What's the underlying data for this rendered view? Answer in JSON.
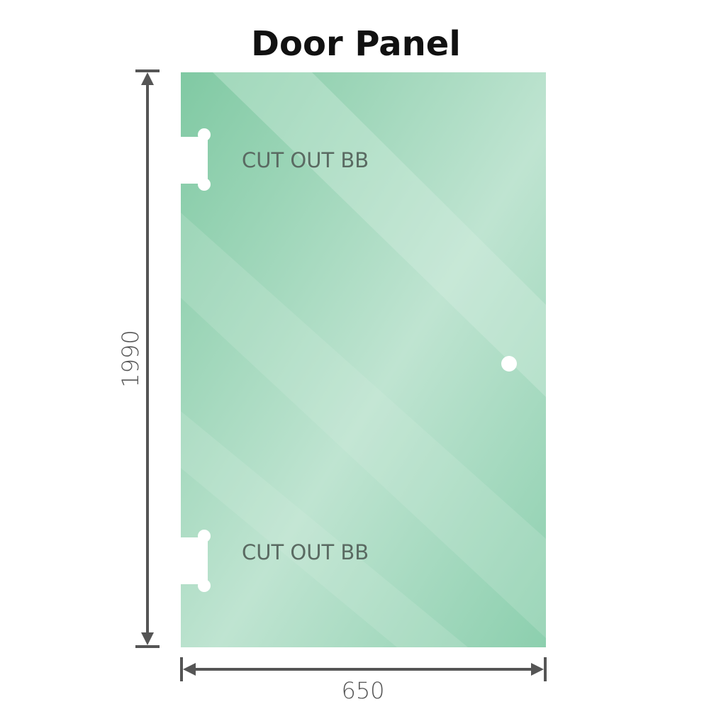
{
  "title": "Door Panel",
  "cutout_labels": [
    "CUT OUT BB",
    "CUT OUT BB"
  ],
  "dimensions": {
    "height": "1990",
    "width": "650"
  },
  "colors": {
    "glass": "#86cca8",
    "glass_light": "#c2e6d4",
    "dimension_line": "#555555"
  }
}
